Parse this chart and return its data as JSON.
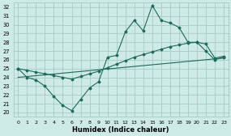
{
  "title": "",
  "xlabel": "Humidex (Indice chaleur)",
  "ylabel": "",
  "bg_color": "#ceeae6",
  "grid_color": "#aacfcb",
  "line_color": "#1a6b5a",
  "xlim": [
    -0.5,
    23.5
  ],
  "ylim": [
    19.5,
    32.5
  ],
  "xticks": [
    0,
    1,
    2,
    3,
    4,
    5,
    6,
    7,
    8,
    9,
    10,
    11,
    12,
    13,
    14,
    15,
    16,
    17,
    18,
    19,
    20,
    21,
    22,
    23
  ],
  "yticks": [
    20,
    21,
    22,
    23,
    24,
    25,
    26,
    27,
    28,
    29,
    30,
    31,
    32
  ],
  "curve1_x": [
    0,
    1,
    2,
    3,
    4,
    5,
    6,
    7,
    8,
    9,
    10,
    11,
    12,
    13,
    14,
    15,
    16,
    17,
    18,
    19,
    20,
    21,
    22,
    23
  ],
  "curve1_y": [
    25.0,
    24.0,
    23.7,
    23.0,
    21.8,
    20.8,
    20.2,
    21.5,
    22.8,
    23.5,
    26.3,
    26.5,
    29.2,
    30.5,
    29.3,
    32.2,
    30.5,
    30.2,
    29.7,
    28.0,
    28.0,
    27.0,
    26.0,
    26.3
  ],
  "curve2_x": [
    0,
    1,
    2,
    3,
    4,
    5,
    6,
    7,
    8,
    9,
    10,
    11,
    12,
    13,
    14,
    15,
    16,
    17,
    18,
    19,
    20,
    21,
    22,
    23
  ],
  "curve2_y": [
    25.0,
    24.8,
    24.6,
    24.4,
    24.2,
    24.0,
    23.8,
    24.1,
    24.4,
    24.7,
    25.1,
    25.5,
    25.9,
    26.3,
    26.6,
    26.9,
    27.2,
    27.5,
    27.7,
    27.9,
    28.0,
    27.8,
    26.2,
    26.4
  ],
  "curve3_x": [
    0,
    23
  ],
  "curve3_y": [
    24.0,
    26.2
  ]
}
